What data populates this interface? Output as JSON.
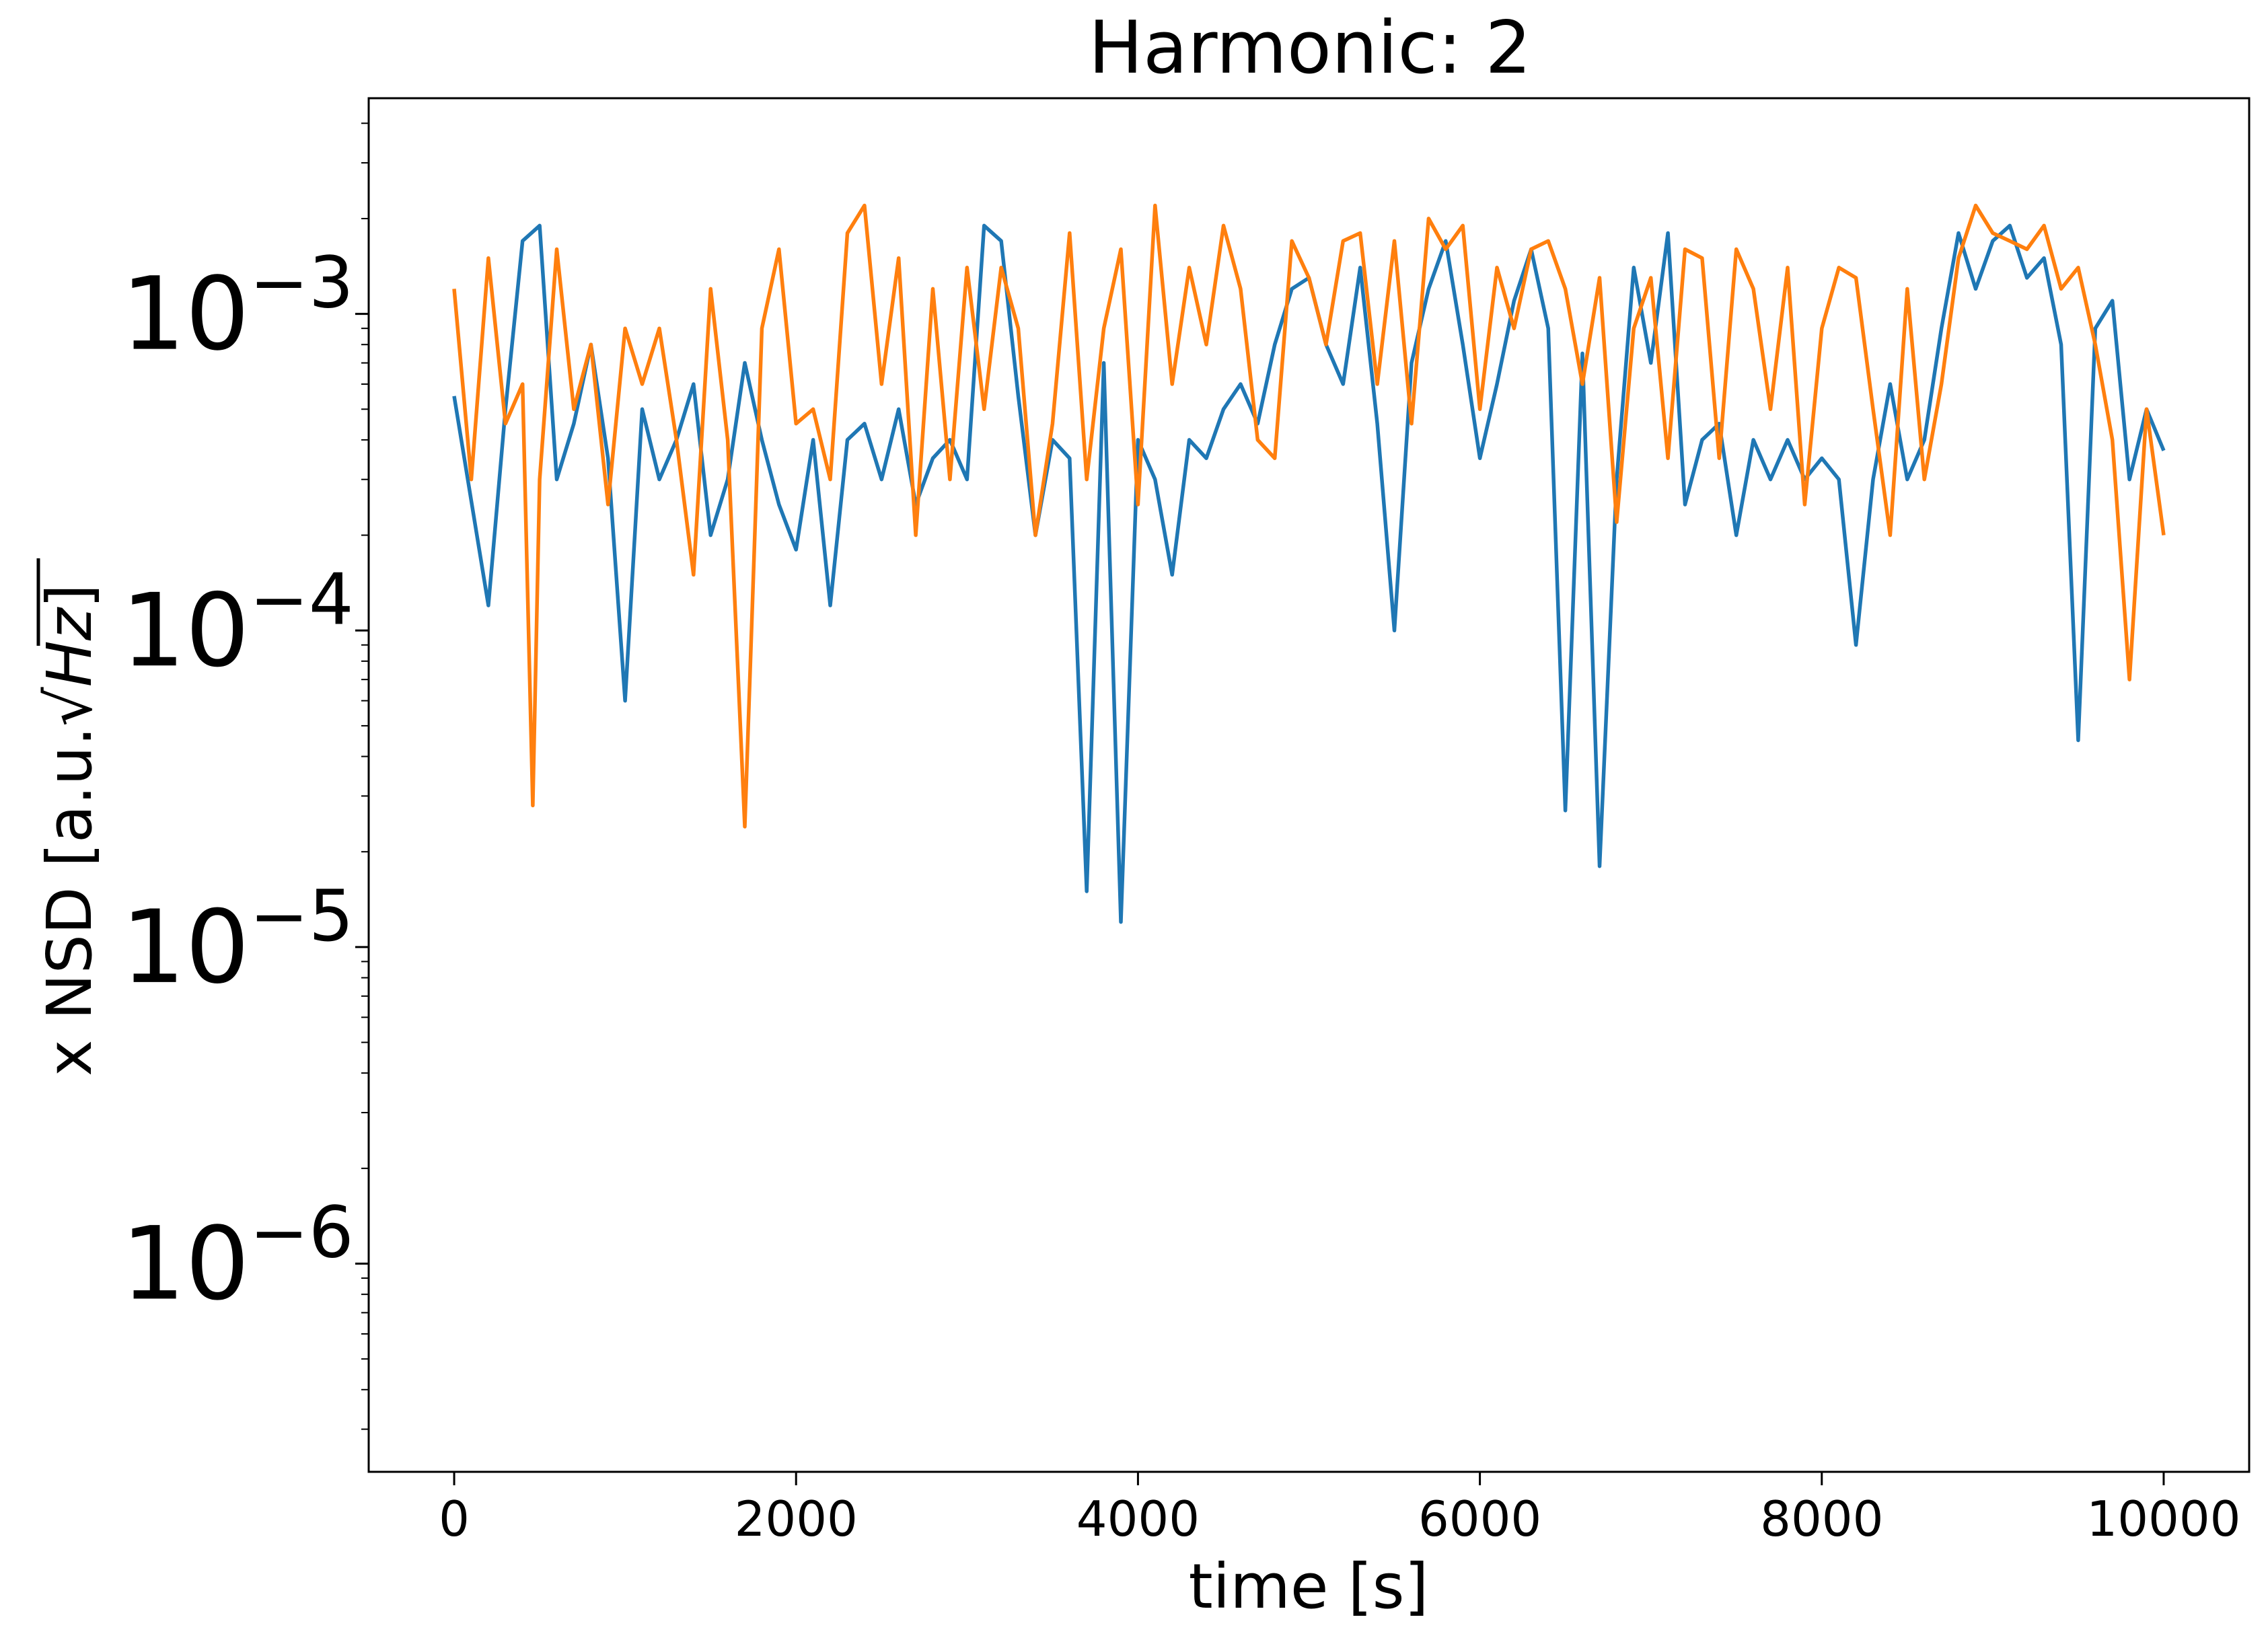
{
  "chart_data": {
    "type": "line",
    "title": "Harmonic: 2",
    "xlabel": "time [s]",
    "ylabel_text": "x NSD [a.u.",
    "ylabel_radicand": "Hz",
    "ylabel_close": "]",
    "xscale": "linear",
    "yscale": "log",
    "xlim": [
      -500,
      10500
    ],
    "ylim": [
      2.2e-07,
      0.0048
    ],
    "x_ticks": [
      {
        "value": 0,
        "label": "0"
      },
      {
        "value": 2000,
        "label": "2000"
      },
      {
        "value": 4000,
        "label": "4000"
      },
      {
        "value": 6000,
        "label": "6000"
      },
      {
        "value": 8000,
        "label": "8000"
      },
      {
        "value": 10000,
        "label": "10000"
      }
    ],
    "y_ticks": [
      {
        "value": 1e-06,
        "base": "10",
        "exp": "−6"
      },
      {
        "value": 1e-05,
        "base": "10",
        "exp": "−5"
      },
      {
        "value": 0.0001,
        "base": "10",
        "exp": "−4"
      },
      {
        "value": 0.001,
        "base": "10",
        "exp": "−3"
      }
    ],
    "grid": false,
    "legend": "none",
    "series": [
      {
        "color": "#1f77b4",
        "x": [
          0,
          200,
          300,
          400,
          500,
          600,
          700,
          800,
          900,
          1000,
          1100,
          1200,
          1300,
          1400,
          1500,
          1600,
          1700,
          1800,
          1900,
          2000,
          2100,
          2200,
          2300,
          2400,
          2500,
          2600,
          2700,
          2800,
          2900,
          3000,
          3100,
          3200,
          3300,
          3400,
          3500,
          3600,
          3700,
          3800,
          3900,
          4000,
          4100,
          4200,
          4300,
          4400,
          4500,
          4600,
          4700,
          4800,
          4900,
          5000,
          5100,
          5200,
          5300,
          5400,
          5500,
          5600,
          5700,
          5800,
          5900,
          6000,
          6100,
          6200,
          6300,
          6400,
          6500,
          6600,
          6700,
          6800,
          6900,
          7000,
          7100,
          7200,
          7300,
          7400,
          7500,
          7600,
          7700,
          7800,
          7900,
          8000,
          8100,
          8200,
          8300,
          8400,
          8500,
          8600,
          8700,
          8800,
          8900,
          9000,
          9100,
          9200,
          9300,
          9400,
          9500,
          9600,
          9700,
          9800,
          9900,
          10000
        ],
        "y": [
          0.00055,
          0.00012,
          0.0005,
          0.0017,
          0.0019,
          0.0003,
          0.00045,
          0.0008,
          0.00035,
          6e-05,
          0.0005,
          0.0003,
          0.0004,
          0.0006,
          0.0002,
          0.0003,
          0.0007,
          0.0004,
          0.00025,
          0.00018,
          0.0004,
          0.00012,
          0.0004,
          0.00045,
          0.0003,
          0.0005,
          0.00025,
          0.00035,
          0.0004,
          0.0003,
          0.0019,
          0.0017,
          0.00055,
          0.0002,
          0.0004,
          0.00035,
          1.5e-05,
          0.0007,
          1.2e-05,
          0.0004,
          0.0003,
          0.00015,
          0.0004,
          0.00035,
          0.0005,
          0.0006,
          0.00045,
          0.0008,
          0.0012,
          0.0013,
          0.0008,
          0.0006,
          0.0014,
          0.00045,
          0.0001,
          0.0007,
          0.0012,
          0.0017,
          0.0008,
          0.00035,
          0.0006,
          0.0011,
          0.0016,
          0.0009,
          2.7e-05,
          0.00075,
          1.8e-05,
          0.0003,
          0.0014,
          0.0007,
          0.0018,
          0.00025,
          0.0004,
          0.00045,
          0.0002,
          0.0004,
          0.0003,
          0.0004,
          0.0003,
          0.00035,
          0.0003,
          9e-05,
          0.0003,
          0.0006,
          0.0003,
          0.0004,
          0.0009,
          0.0018,
          0.0012,
          0.0017,
          0.0019,
          0.0013,
          0.0015,
          0.0008,
          4.5e-05,
          0.0009,
          0.0011,
          0.0003,
          0.0005,
          0.00037
        ]
      },
      {
        "color": "#ff7f0e",
        "x": [
          0,
          100,
          200,
          300,
          400,
          460,
          500,
          600,
          700,
          800,
          900,
          1000,
          1100,
          1200,
          1300,
          1400,
          1500,
          1600,
          1700,
          1800,
          1900,
          2000,
          2100,
          2200,
          2300,
          2400,
          2500,
          2600,
          2700,
          2800,
          2900,
          3000,
          3100,
          3200,
          3300,
          3400,
          3500,
          3600,
          3700,
          3800,
          3900,
          4000,
          4100,
          4200,
          4300,
          4400,
          4500,
          4600,
          4700,
          4800,
          4900,
          5000,
          5100,
          5200,
          5300,
          5400,
          5500,
          5600,
          5700,
          5800,
          5900,
          6000,
          6100,
          6200,
          6300,
          6400,
          6500,
          6600,
          6700,
          6800,
          6900,
          7000,
          7100,
          7200,
          7300,
          7400,
          7500,
          7600,
          7700,
          7800,
          7900,
          8000,
          8100,
          8200,
          8300,
          8400,
          8500,
          8600,
          8700,
          8800,
          8900,
          9000,
          9100,
          9200,
          9300,
          9400,
          9500,
          9600,
          9700,
          9800,
          9900,
          10000
        ],
        "y": [
          0.0012,
          0.0003,
          0.0015,
          0.00045,
          0.0006,
          2.8e-05,
          0.0003,
          0.0016,
          0.0005,
          0.0008,
          0.00025,
          0.0009,
          0.0006,
          0.0009,
          0.0004,
          0.00015,
          0.0012,
          0.0004,
          2.4e-05,
          0.0009,
          0.0016,
          0.00045,
          0.0005,
          0.0003,
          0.0018,
          0.0022,
          0.0006,
          0.0015,
          0.0002,
          0.0012,
          0.0003,
          0.0014,
          0.0005,
          0.0014,
          0.0009,
          0.0002,
          0.00045,
          0.0018,
          0.0003,
          0.0009,
          0.0016,
          0.00025,
          0.0022,
          0.0006,
          0.0014,
          0.0008,
          0.0019,
          0.0012,
          0.0004,
          0.00035,
          0.0017,
          0.0013,
          0.0008,
          0.0017,
          0.0018,
          0.0006,
          0.0017,
          0.00045,
          0.002,
          0.0016,
          0.0019,
          0.0005,
          0.0014,
          0.0009,
          0.0016,
          0.0017,
          0.0012,
          0.0006,
          0.0013,
          0.00022,
          0.0009,
          0.0013,
          0.00035,
          0.0016,
          0.0015,
          0.00035,
          0.0016,
          0.0012,
          0.0005,
          0.0014,
          0.00025,
          0.0009,
          0.0014,
          0.0013,
          0.0005,
          0.0002,
          0.0012,
          0.0003,
          0.0006,
          0.0015,
          0.0022,
          0.0018,
          0.0017,
          0.0016,
          0.0019,
          0.0012,
          0.0014,
          0.0008,
          0.0004,
          7e-05,
          0.0005,
          0.0002
        ]
      }
    ]
  }
}
